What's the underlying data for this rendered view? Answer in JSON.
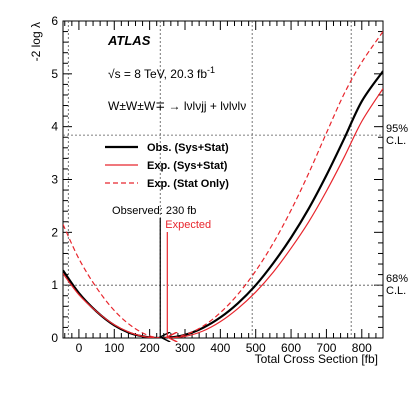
{
  "chart_data": {
    "type": "line",
    "experiment": "ATLAS",
    "energy_text": "√s = 8 TeV, 20.3 fb",
    "energy_sup": "-1",
    "process": "W±W±W∓ → lνlνjj + lνlνlν",
    "xlabel": "Total Cross Section [fb]",
    "ylabel": "-2 log λ",
    "xlim": [
      -45,
      860
    ],
    "ylim": [
      0,
      6
    ],
    "xticks": [
      0,
      100,
      200,
      300,
      400,
      500,
      600,
      700,
      800
    ],
    "yticks": [
      0,
      1,
      2,
      3,
      4,
      5,
      6
    ],
    "grid": false,
    "legend_position": "top-left",
    "confidence_levels": [
      {
        "value": 1.0,
        "label_top": "68%",
        "label_bottom": "C.L."
      },
      {
        "value": 3.84,
        "label_top": "95%",
        "label_bottom": "C.L."
      }
    ],
    "cl_intervals": [
      -30,
      230,
      490,
      770
    ],
    "series": [
      {
        "name": "Obs. (Sys+Stat)",
        "color": "#000000",
        "dash": "solid",
        "x": [
          -45,
          0,
          50,
          100,
          150,
          200,
          230,
          260,
          300,
          350,
          400,
          450,
          500,
          550,
          600,
          650,
          700,
          750,
          800,
          860
        ],
        "y": [
          1.28,
          0.85,
          0.5,
          0.24,
          0.08,
          0.01,
          0.0,
          0.01,
          0.06,
          0.19,
          0.39,
          0.66,
          1.0,
          1.42,
          1.9,
          2.45,
          3.08,
          3.77,
          4.48,
          5.05
        ]
      },
      {
        "name": "Exp. (Sys+Stat)",
        "color": "#e8262d",
        "dash": "solid",
        "x": [
          -45,
          0,
          50,
          100,
          150,
          200,
          250,
          300,
          350,
          400,
          450,
          500,
          550,
          600,
          650,
          700,
          750,
          800,
          860
        ],
        "y": [
          1.22,
          0.82,
          0.5,
          0.25,
          0.09,
          0.01,
          0.0,
          0.03,
          0.13,
          0.31,
          0.56,
          0.87,
          1.25,
          1.7,
          2.2,
          2.78,
          3.42,
          4.1,
          4.72
        ]
      },
      {
        "name": "Exp. (Stat Only)",
        "color": "#e8262d",
        "dash": "dashed",
        "x": [
          -45,
          0,
          50,
          100,
          150,
          200,
          250,
          300,
          350,
          400,
          450,
          500,
          550,
          600,
          650,
          700,
          750,
          800,
          860
        ],
        "y": [
          2.15,
          1.5,
          0.95,
          0.52,
          0.22,
          0.04,
          0.0,
          0.06,
          0.22,
          0.48,
          0.83,
          1.27,
          1.8,
          2.42,
          3.12,
          3.88,
          4.62,
          5.22,
          5.8
        ]
      }
    ],
    "markers": [
      {
        "label": "Observed: 230 fb",
        "x": 230,
        "color": "#000000"
      },
      {
        "label": "Expected",
        "x": 250,
        "color": "#e8262d"
      }
    ]
  }
}
